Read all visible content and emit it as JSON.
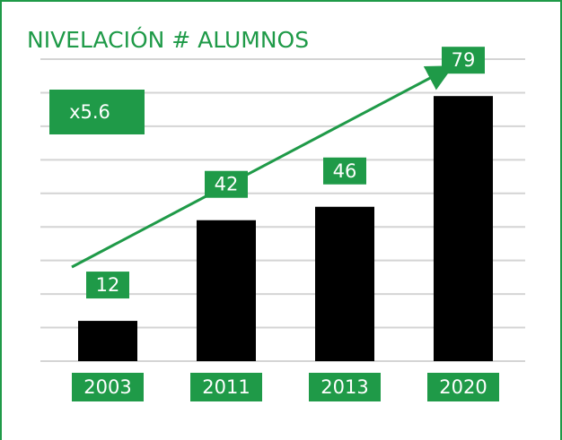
{
  "chart_data": {
    "type": "bar",
    "title": "NIVELACIÓN # ALUMNOS",
    "annotation": "x5.6",
    "categories": [
      "2003",
      "2011",
      "2013",
      "2020"
    ],
    "values": [
      12,
      42,
      46,
      79
    ],
    "color": "#000000",
    "label_color": "#1f9a48",
    "ylim": [
      0,
      90
    ],
    "yticks": [
      0,
      10,
      20,
      30,
      40,
      50,
      60,
      70,
      80,
      90
    ],
    "grid": true
  }
}
